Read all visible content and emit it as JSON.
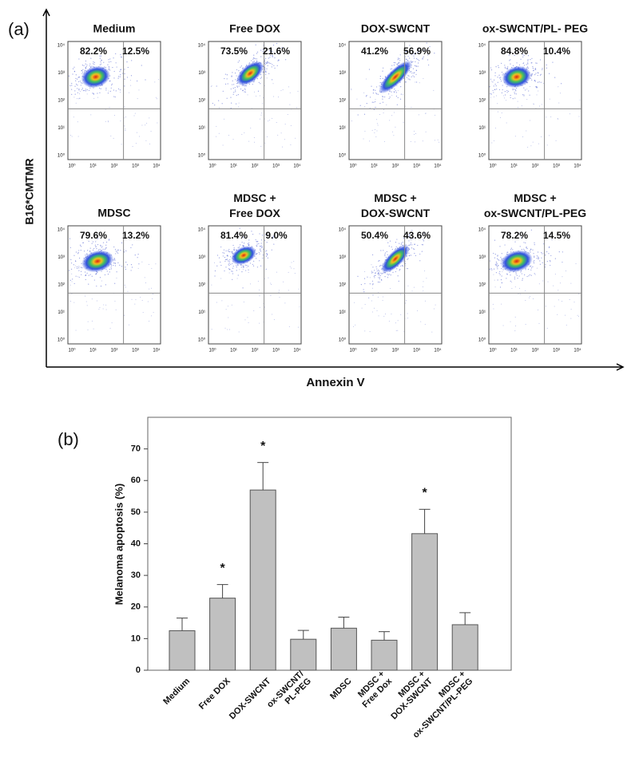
{
  "panel_a": {
    "label": "(a)",
    "ylabel": "B16*CMTMR",
    "xlabel": "Annexin V",
    "axis_ticks": [
      "10⁰",
      "10¹",
      "10²",
      "10³",
      "10⁴"
    ],
    "plots": [
      {
        "title": "Medium",
        "left": "82.2%",
        "right": "12.5%"
      },
      {
        "title": "Free DOX",
        "left": "73.5%",
        "right": "21.6%"
      },
      {
        "title": "DOX-SWCNT",
        "left": "41.2%",
        "right": "56.9%"
      },
      {
        "title": "ox-SWCNT/PL- PEG",
        "left": "84.8%",
        "right": "10.4%"
      },
      {
        "title": "MDSC",
        "left": "79.6%",
        "right": "13.2%"
      },
      {
        "title": "MDSC +\nFree DOX",
        "left": "81.4%",
        "right": "9.0%"
      },
      {
        "title": "MDSC +\nDOX-SWCNT",
        "left": "50.4%",
        "right": "43.6%"
      },
      {
        "title": "MDSC +\nox-SWCNT/PL-PEG",
        "left": "78.2%",
        "right": "14.5%"
      }
    ]
  },
  "chart_data": {
    "type": "bar",
    "panel_label": "(b)",
    "ylabel": "Melanoma apoptosis (%)",
    "categories": [
      "Medium",
      "Free DOX",
      "DOX-SWCNT",
      "ox-SWCNT/\nPL-PEG",
      "MDSC",
      "MDSC +\nFree Dox",
      "MDSC +\nDOX-SWCNT",
      "MDSC +\nox-SWCNT/PL-PEG"
    ],
    "values": [
      12.5,
      22.8,
      57,
      9.8,
      13.3,
      9.5,
      43.2,
      14.4
    ],
    "errors": [
      4,
      4.3,
      8.7,
      2.8,
      3.5,
      2.7,
      7.7,
      3.8
    ],
    "markers": [
      null,
      "*",
      "*",
      null,
      null,
      null,
      "*",
      null
    ],
    "color": "#c0c0c0",
    "ylim": [
      0,
      80
    ],
    "yticks": [
      0,
      10,
      20,
      30,
      40,
      50,
      60,
      70
    ]
  }
}
